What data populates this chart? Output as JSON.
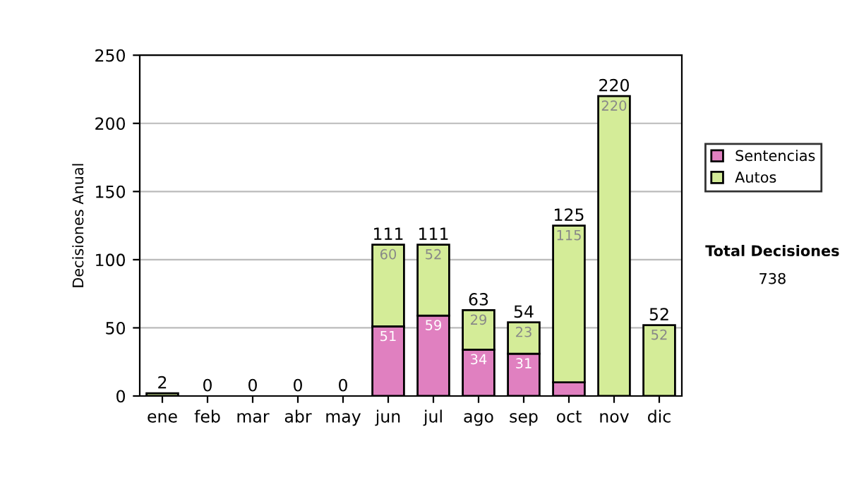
{
  "chart_data": {
    "type": "bar",
    "stacked": true,
    "ylabel": "Decisiones Anual",
    "categories": [
      "ene",
      "feb",
      "mar",
      "abr",
      "may",
      "jun",
      "jul",
      "ago",
      "sep",
      "oct",
      "nov",
      "dic"
    ],
    "series": [
      {
        "name": "Sentencias",
        "color": "#e080c0",
        "values": [
          0,
          0,
          0,
          0,
          0,
          51,
          59,
          34,
          31,
          10,
          0,
          0
        ],
        "value_labels": [
          null,
          null,
          null,
          null,
          null,
          "51",
          "59",
          "34",
          "31",
          null,
          null,
          null
        ]
      },
      {
        "name": "Autos",
        "color": "#d4ec98",
        "values": [
          2,
          0,
          0,
          0,
          0,
          60,
          52,
          29,
          23,
          115,
          220,
          52
        ],
        "value_labels": [
          null,
          null,
          null,
          null,
          null,
          "60",
          "52",
          "29",
          "23",
          "115",
          "220",
          "52"
        ]
      }
    ],
    "totals": [
      "2",
      "0",
      "0",
      "0",
      "0",
      "111",
      "111",
      "63",
      "54",
      "125",
      "220",
      "52"
    ],
    "ylim": [
      0,
      250
    ],
    "yticks": [
      0,
      50,
      100,
      150,
      200,
      250
    ],
    "grid": "y",
    "legend": "right",
    "annotations": [
      "Total Decisiones",
      "738"
    ]
  }
}
